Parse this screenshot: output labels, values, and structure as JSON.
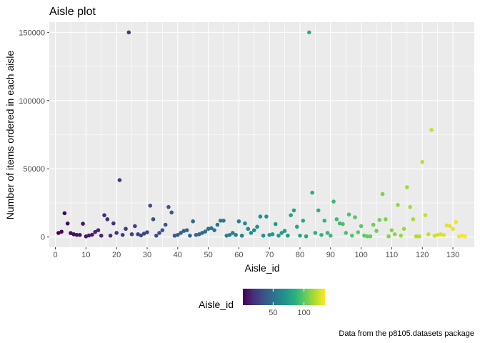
{
  "chart_data": {
    "type": "scatter",
    "title": "Aisle plot",
    "xlabel": "Aisle_id",
    "ylabel": "Number of items ordered in each aisle",
    "caption": "Data from the p8105.datasets package",
    "xlim": [
      -2,
      137
    ],
    "ylim": [
      -7500,
      157500
    ],
    "x_ticks": [
      0,
      10,
      20,
      30,
      40,
      50,
      60,
      70,
      80,
      90,
      100,
      110,
      120,
      130
    ],
    "y_ticks": [
      0,
      50000,
      100000,
      150000
    ],
    "y_tick_labels": [
      "0",
      "50000",
      "100000",
      "150000"
    ],
    "grid": true,
    "background": "#ebebeb",
    "color_scale": "viridis",
    "legend": {
      "title": "Aisle_id",
      "position": "bottom",
      "range": [
        1,
        134
      ],
      "ticks": [
        50,
        100
      ],
      "tick_labels": [
        "50",
        "100"
      ]
    },
    "points": [
      [
        1,
        2936
      ],
      [
        2,
        3873
      ],
      [
        3,
        17449
      ],
      [
        4,
        9917
      ],
      [
        5,
        2905
      ],
      [
        6,
        2000
      ],
      [
        7,
        1526
      ],
      [
        8,
        1501
      ],
      [
        9,
        9736
      ],
      [
        10,
        448
      ],
      [
        11,
        1134
      ],
      [
        12,
        1628
      ],
      [
        13,
        3700
      ],
      [
        14,
        5000
      ],
      [
        15,
        1000
      ],
      [
        16,
        16000
      ],
      [
        17,
        13000
      ],
      [
        18,
        1000
      ],
      [
        19,
        10000
      ],
      [
        20,
        3000
      ],
      [
        21,
        41699
      ],
      [
        22,
        1500
      ],
      [
        23,
        6000
      ],
      [
        24,
        150000
      ],
      [
        25,
        2000
      ],
      [
        26,
        8000
      ],
      [
        27,
        2000
      ],
      [
        28,
        1200
      ],
      [
        29,
        2500
      ],
      [
        30,
        3500
      ],
      [
        31,
        23000
      ],
      [
        32,
        13000
      ],
      [
        33,
        1000
      ],
      [
        34,
        3000
      ],
      [
        35,
        5000
      ],
      [
        36,
        9000
      ],
      [
        37,
        22000
      ],
      [
        38,
        18000
      ],
      [
        39,
        1000
      ],
      [
        40,
        1500
      ],
      [
        41,
        3000
      ],
      [
        42,
        4500
      ],
      [
        43,
        5000
      ],
      [
        44,
        1000
      ],
      [
        45,
        11500
      ],
      [
        46,
        1500
      ],
      [
        47,
        2000
      ],
      [
        48,
        3000
      ],
      [
        49,
        4000
      ],
      [
        50,
        6000
      ],
      [
        51,
        6500
      ],
      [
        52,
        5000
      ],
      [
        53,
        9000
      ],
      [
        54,
        12000
      ],
      [
        55,
        12000
      ],
      [
        56,
        1000
      ],
      [
        57,
        1500
      ],
      [
        58,
        3000
      ],
      [
        59,
        1500
      ],
      [
        60,
        11500
      ],
      [
        61,
        1000
      ],
      [
        62,
        10000
      ],
      [
        63,
        6000
      ],
      [
        64,
        3000
      ],
      [
        65,
        5000
      ],
      [
        66,
        7500
      ],
      [
        67,
        15000
      ],
      [
        68,
        1000
      ],
      [
        69,
        15000
      ],
      [
        70,
        1500
      ],
      [
        71,
        2000
      ],
      [
        72,
        9500
      ],
      [
        73,
        1000
      ],
      [
        74,
        3000
      ],
      [
        75,
        4500
      ],
      [
        76,
        1000
      ],
      [
        77,
        16000
      ],
      [
        78,
        19500
      ],
      [
        79,
        7500
      ],
      [
        80,
        1000
      ],
      [
        81,
        12000
      ],
      [
        82,
        500
      ],
      [
        83,
        150000
      ],
      [
        84,
        32500
      ],
      [
        85,
        3000
      ],
      [
        86,
        19500
      ],
      [
        87,
        1500
      ],
      [
        88,
        12000
      ],
      [
        89,
        3000
      ],
      [
        90,
        1000
      ],
      [
        91,
        26000
      ],
      [
        92,
        13000
      ],
      [
        93,
        10000
      ],
      [
        94,
        9500
      ],
      [
        95,
        3000
      ],
      [
        96,
        16500
      ],
      [
        97,
        1000
      ],
      [
        98,
        14500
      ],
      [
        99,
        3500
      ],
      [
        100,
        8000
      ],
      [
        101,
        1000
      ],
      [
        102,
        500
      ],
      [
        103,
        500
      ],
      [
        104,
        9000
      ],
      [
        105,
        4500
      ],
      [
        106,
        12500
      ],
      [
        107,
        31500
      ],
      [
        108,
        13000
      ],
      [
        109,
        500
      ],
      [
        110,
        5000
      ],
      [
        111,
        2000
      ],
      [
        112,
        23500
      ],
      [
        113,
        1000
      ],
      [
        114,
        6000
      ],
      [
        115,
        36500
      ],
      [
        116,
        22000
      ],
      [
        117,
        13000
      ],
      [
        118,
        500
      ],
      [
        119,
        500
      ],
      [
        120,
        55000
      ],
      [
        121,
        16000
      ],
      [
        122,
        2000
      ],
      [
        123,
        78500
      ],
      [
        124,
        1000
      ],
      [
        125,
        1500
      ],
      [
        126,
        2000
      ],
      [
        127,
        1500
      ],
      [
        128,
        8500
      ],
      [
        129,
        8000
      ],
      [
        130,
        6000
      ],
      [
        131,
        11000
      ],
      [
        132,
        500
      ],
      [
        133,
        1000
      ],
      [
        134,
        500
      ]
    ]
  }
}
